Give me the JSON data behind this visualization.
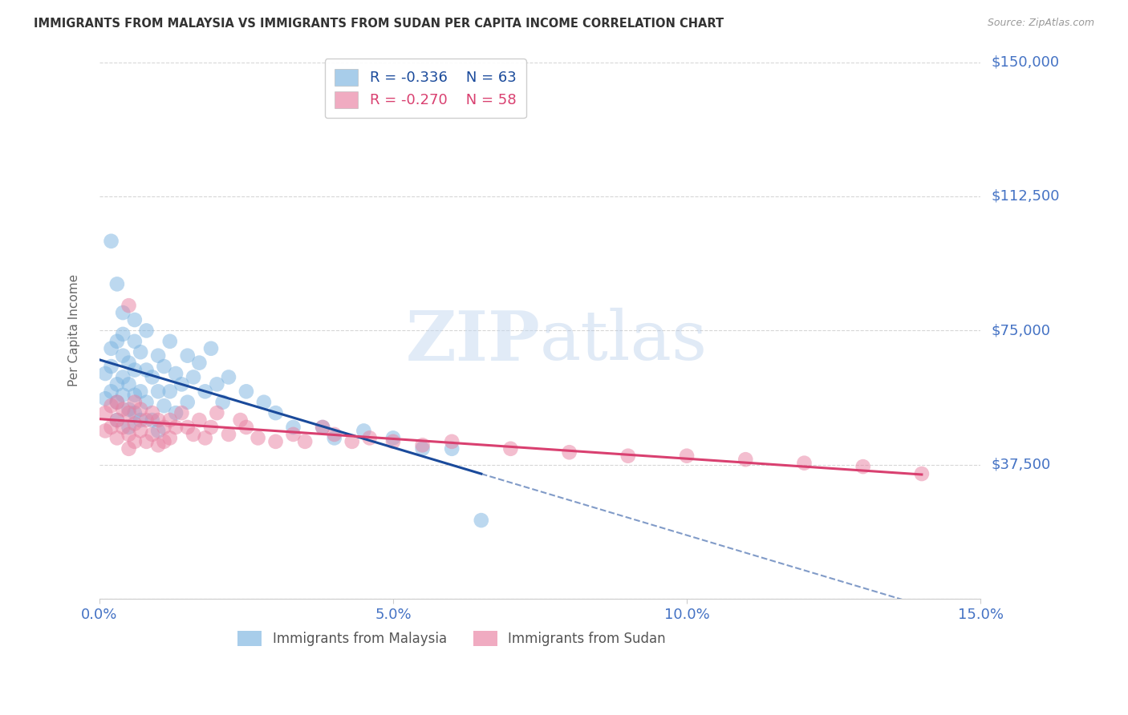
{
  "title": "IMMIGRANTS FROM MALAYSIA VS IMMIGRANTS FROM SUDAN PER CAPITA INCOME CORRELATION CHART",
  "source": "Source: ZipAtlas.com",
  "ylabel": "Per Capita Income",
  "xlim": [
    0.0,
    0.15
  ],
  "ylim": [
    0,
    150000
  ],
  "yticks": [
    0,
    37500,
    75000,
    112500,
    150000
  ],
  "ytick_labels": [
    "",
    "$37,500",
    "$75,000",
    "$112,500",
    "$150,000"
  ],
  "xticks": [
    0.0,
    0.05,
    0.1,
    0.15
  ],
  "xtick_labels": [
    "0.0%",
    "5.0%",
    "10.0%",
    "15.0%"
  ],
  "malaysia_color": "#7ab3e0",
  "sudan_color": "#e87fa0",
  "malaysia_line_color": "#1a4a9b",
  "sudan_line_color": "#d94070",
  "malaysia_R": -0.336,
  "malaysia_N": 63,
  "sudan_R": -0.27,
  "sudan_N": 58,
  "watermark_zip": "ZIP",
  "watermark_atlas": "atlas",
  "background_color": "#ffffff",
  "grid_color": "#cccccc",
  "title_color": "#333333",
  "axis_label_color": "#666666",
  "ytick_color": "#4472c4",
  "xtick_color": "#4472c4",
  "legend_label_malaysia": "Immigrants from Malaysia",
  "legend_label_sudan": "Immigrants from Sudan",
  "malaysia_scatter_x": [
    0.001,
    0.001,
    0.002,
    0.002,
    0.002,
    0.003,
    0.003,
    0.003,
    0.003,
    0.004,
    0.004,
    0.004,
    0.004,
    0.005,
    0.005,
    0.005,
    0.005,
    0.006,
    0.006,
    0.006,
    0.006,
    0.007,
    0.007,
    0.007,
    0.008,
    0.008,
    0.008,
    0.009,
    0.009,
    0.01,
    0.01,
    0.01,
    0.011,
    0.011,
    0.012,
    0.012,
    0.013,
    0.013,
    0.014,
    0.015,
    0.015,
    0.016,
    0.017,
    0.018,
    0.019,
    0.02,
    0.021,
    0.022,
    0.025,
    0.028,
    0.03,
    0.033,
    0.038,
    0.04,
    0.045,
    0.05,
    0.055,
    0.06,
    0.002,
    0.003,
    0.004,
    0.006,
    0.065
  ],
  "malaysia_scatter_y": [
    63000,
    56000,
    70000,
    58000,
    65000,
    72000,
    60000,
    55000,
    50000,
    68000,
    74000,
    62000,
    57000,
    66000,
    53000,
    48000,
    60000,
    64000,
    57000,
    52000,
    72000,
    69000,
    58000,
    50000,
    75000,
    64000,
    55000,
    62000,
    50000,
    68000,
    58000,
    47000,
    65000,
    54000,
    72000,
    58000,
    63000,
    52000,
    60000,
    68000,
    55000,
    62000,
    66000,
    58000,
    70000,
    60000,
    55000,
    62000,
    58000,
    55000,
    52000,
    48000,
    48000,
    45000,
    47000,
    45000,
    42000,
    42000,
    100000,
    88000,
    80000,
    78000,
    22000
  ],
  "sudan_scatter_x": [
    0.001,
    0.001,
    0.002,
    0.002,
    0.003,
    0.003,
    0.003,
    0.004,
    0.004,
    0.005,
    0.005,
    0.005,
    0.006,
    0.006,
    0.006,
    0.007,
    0.007,
    0.008,
    0.008,
    0.009,
    0.009,
    0.01,
    0.01,
    0.011,
    0.011,
    0.012,
    0.012,
    0.013,
    0.014,
    0.015,
    0.016,
    0.017,
    0.018,
    0.019,
    0.02,
    0.022,
    0.024,
    0.025,
    0.027,
    0.03,
    0.033,
    0.035,
    0.038,
    0.04,
    0.043,
    0.046,
    0.05,
    0.055,
    0.06,
    0.07,
    0.08,
    0.09,
    0.1,
    0.11,
    0.12,
    0.13,
    0.14,
    0.005
  ],
  "sudan_scatter_y": [
    52000,
    47000,
    54000,
    48000,
    55000,
    50000,
    45000,
    53000,
    48000,
    52000,
    46000,
    42000,
    55000,
    49000,
    44000,
    53000,
    47000,
    50000,
    44000,
    52000,
    46000,
    50000,
    43000,
    48000,
    44000,
    50000,
    45000,
    48000,
    52000,
    48000,
    46000,
    50000,
    45000,
    48000,
    52000,
    46000,
    50000,
    48000,
    45000,
    44000,
    46000,
    44000,
    48000,
    46000,
    44000,
    45000,
    44000,
    43000,
    44000,
    42000,
    41000,
    40000,
    40000,
    39000,
    38000,
    37000,
    35000,
    82000
  ]
}
